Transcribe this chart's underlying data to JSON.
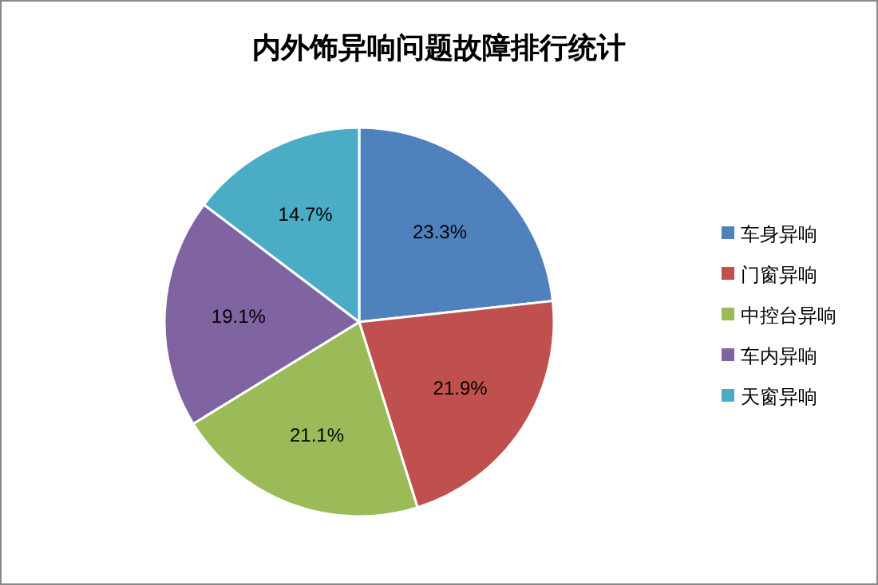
{
  "chart_data": {
    "type": "pie",
    "title": "内外饰异响问题故障排行统计",
    "categories": [
      "车身异响",
      "门窗异响",
      "中控台异响",
      "车内异响",
      "天窗异响"
    ],
    "values": [
      23.3,
      21.9,
      21.1,
      19.1,
      14.7
    ],
    "colors": [
      "#4f81bd",
      "#c0504d",
      "#9bbb59",
      "#8064a2",
      "#4bacc6"
    ],
    "value_labels": [
      "23.3%",
      "21.9%",
      "21.1%",
      "19.1%",
      "14.7%"
    ],
    "legend": "right"
  }
}
